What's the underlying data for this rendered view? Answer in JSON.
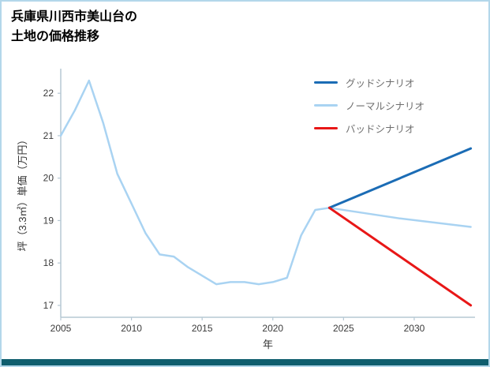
{
  "title": {
    "line1": "兵庫県川西市美山台の",
    "line2": "土地の価格推移"
  },
  "chart_data": {
    "type": "line",
    "title": "兵庫県川西市美山台の土地の価格推移",
    "xlabel": "年",
    "ylabel": "坪（3.3㎡）単価（万円）",
    "xlim": [
      2005,
      2034.3
    ],
    "ylim": [
      16.72,
      22.58
    ],
    "xticks": [
      2005,
      2010,
      2015,
      2020,
      2025,
      2030
    ],
    "yticks": [
      17,
      18,
      19,
      20,
      21,
      22
    ],
    "grid": false,
    "legend_position": "top-right",
    "series": [
      {
        "name": "グッドシナリオ",
        "color": "#1b6cb5",
        "width": 3,
        "points": [
          [
            2024,
            19.3
          ],
          [
            2029,
            20.0
          ],
          [
            2034,
            20.7
          ]
        ]
      },
      {
        "name": "ノーマルシナリオ",
        "color": "#a9d3f2",
        "width": 2.5,
        "points": [
          [
            2005,
            21.0
          ],
          [
            2006,
            21.6
          ],
          [
            2007,
            22.3
          ],
          [
            2008,
            21.3
          ],
          [
            2009,
            20.1
          ],
          [
            2010,
            19.4
          ],
          [
            2011,
            18.7
          ],
          [
            2012,
            18.2
          ],
          [
            2013,
            18.15
          ],
          [
            2014,
            17.9
          ],
          [
            2015,
            17.7
          ],
          [
            2016,
            17.5
          ],
          [
            2017,
            17.55
          ],
          [
            2018,
            17.55
          ],
          [
            2019,
            17.5
          ],
          [
            2020,
            17.55
          ],
          [
            2021,
            17.65
          ],
          [
            2022,
            18.65
          ],
          [
            2023,
            19.25
          ],
          [
            2024,
            19.3
          ],
          [
            2029,
            19.05
          ],
          [
            2034,
            18.85
          ]
        ]
      },
      {
        "name": "バッドシナリオ",
        "color": "#e81717",
        "width": 3,
        "points": [
          [
            2024,
            19.3
          ],
          [
            2029,
            18.15
          ],
          [
            2034,
            17.0
          ]
        ]
      }
    ]
  },
  "theme": {
    "background": "#ffffff",
    "border": "#b3d7ea",
    "footer_bar": "#0f5e6e",
    "axis": "#b6c8d4",
    "tick_text": "#3a3a3a",
    "label_text": "#333333",
    "legend_text": "#6e6e6e",
    "title_text": "#000000"
  }
}
